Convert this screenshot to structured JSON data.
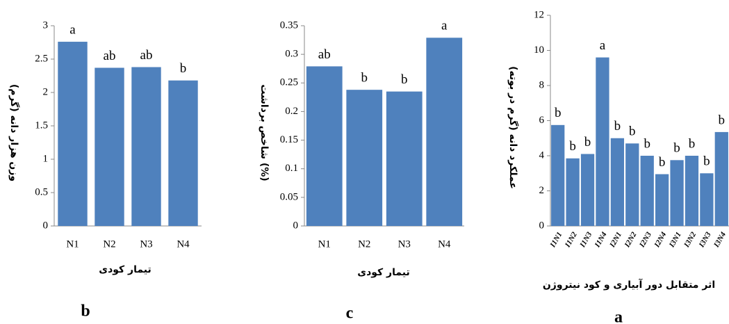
{
  "chart_data": [
    {
      "type": "bar",
      "panel_label": "b",
      "y_label": "وزن هزار دانه (گرم)",
      "x_label": "تیمار کودی",
      "categories": [
        "N1",
        "N2",
        "N3",
        "N4"
      ],
      "values": [
        2.76,
        2.37,
        2.38,
        2.18
      ],
      "letters": [
        "a",
        "ab",
        "ab",
        "b"
      ],
      "color": "#4f81bd",
      "ylim": [
        0,
        3
      ],
      "yticks": [
        0,
        0.5,
        1,
        1.5,
        2,
        2.5,
        3
      ],
      "grid": false
    },
    {
      "type": "bar",
      "panel_label": "c",
      "y_label": "شاخص برداشت (%)",
      "x_label": "تیمار کودی",
      "categories": [
        "N1",
        "N2",
        "N3",
        "N4"
      ],
      "values": [
        0.279,
        0.238,
        0.235,
        0.329
      ],
      "letters": [
        "ab",
        "b",
        "b",
        "a"
      ],
      "color": "#4f81bd",
      "ylim": [
        0,
        0.35
      ],
      "yticks": [
        0,
        0.05,
        0.1,
        0.15,
        0.2,
        0.25,
        0.3,
        0.35
      ],
      "grid": false
    },
    {
      "type": "bar",
      "panel_label": "a",
      "y_label": "عملکرد دانه (گرم در بوته)",
      "x_label": "اثر متقابل دور آبیاری و کود نیتروژن",
      "categories": [
        "I1N1",
        "I1N2",
        "I1N3",
        "I1N4",
        "I2N1",
        "I2N2",
        "I2N3",
        "I2N4",
        "I3N1",
        "I3N2",
        "I3N3",
        "I3N4"
      ],
      "values": [
        5.75,
        3.85,
        4.1,
        9.6,
        5.0,
        4.7,
        4.0,
        2.95,
        3.75,
        4.0,
        3.0,
        5.35
      ],
      "letters": [
        "b",
        "b",
        "b",
        "a",
        "b",
        "b",
        "b",
        "b",
        "b",
        "b",
        "b",
        "b"
      ],
      "color": "#4f81bd",
      "ylim": [
        0,
        12
      ],
      "yticks": [
        0,
        2,
        4,
        6,
        8,
        10,
        12
      ],
      "grid": false
    }
  ]
}
